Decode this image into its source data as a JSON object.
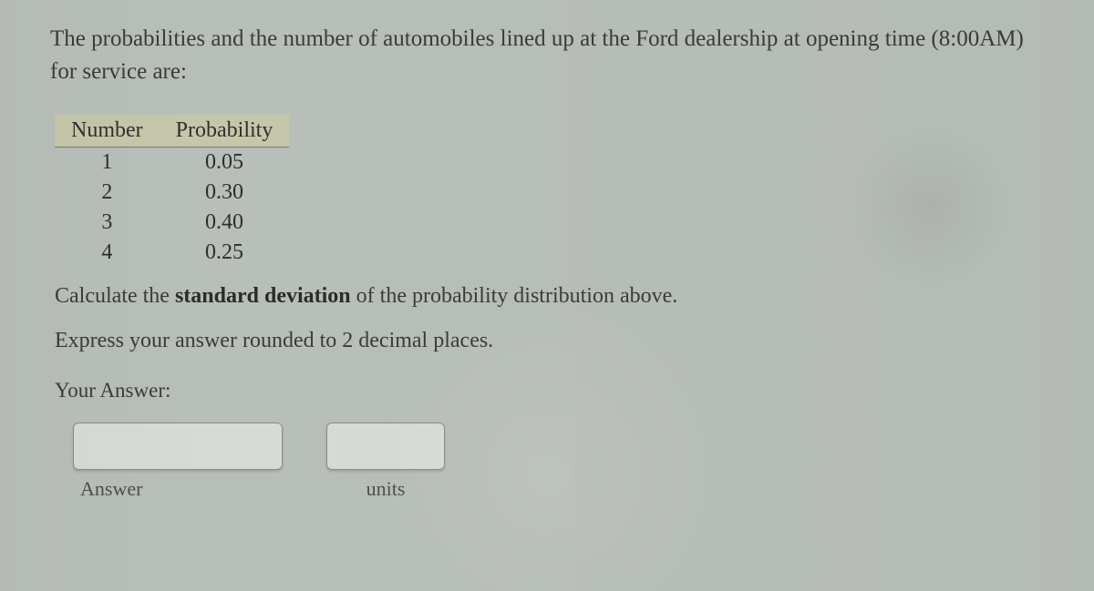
{
  "intro_text": "The probabilities and the number of automobiles lined up at the Ford dealership at opening time (8:00AM) for service are:",
  "table": {
    "headers": {
      "col1": "Number",
      "col2": "Probability"
    },
    "rows": [
      {
        "number": "1",
        "prob": "0.05"
      },
      {
        "number": "2",
        "prob": "0.30"
      },
      {
        "number": "3",
        "prob": "0.40"
      },
      {
        "number": "4",
        "prob": "0.25"
      }
    ],
    "header_bg": "#c6c7aa",
    "header_border": "#7d7d6e",
    "fontsize": 24
  },
  "instruction": {
    "prefix": "Calculate the ",
    "bold": "standard deviation",
    "suffix": " of the probability distribution above."
  },
  "express_text": "Express your answer rounded to 2 decimal places.",
  "your_answer_label": "Your Answer:",
  "answer_field": {
    "label": "Answer",
    "value": ""
  },
  "units_field": {
    "label": "units",
    "value": ""
  },
  "colors": {
    "page_bg": "#b8beb8",
    "text": "#3a3c3a",
    "field_bg": "#d7dad5",
    "field_border": "#8a8d88"
  }
}
